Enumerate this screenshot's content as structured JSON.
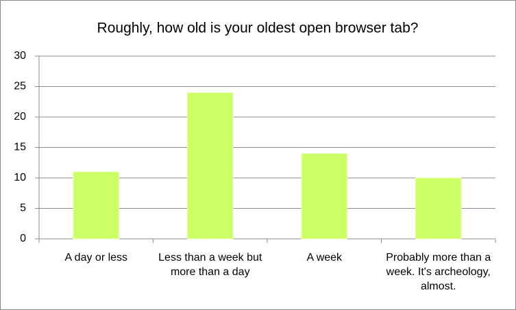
{
  "chart_data": {
    "type": "bar",
    "title": "Roughly, how old is your oldest open browser tab?",
    "categories": [
      "A day or less",
      "Less than a week but more than a day",
      "A week",
      "Probably more than a week. It's archeology, almost."
    ],
    "values": [
      11,
      24,
      14,
      10
    ],
    "color": "#ccff66",
    "ylim": [
      0,
      30
    ],
    "yticks": [
      0,
      5,
      10,
      15,
      20,
      25,
      30
    ],
    "grid": true
  }
}
